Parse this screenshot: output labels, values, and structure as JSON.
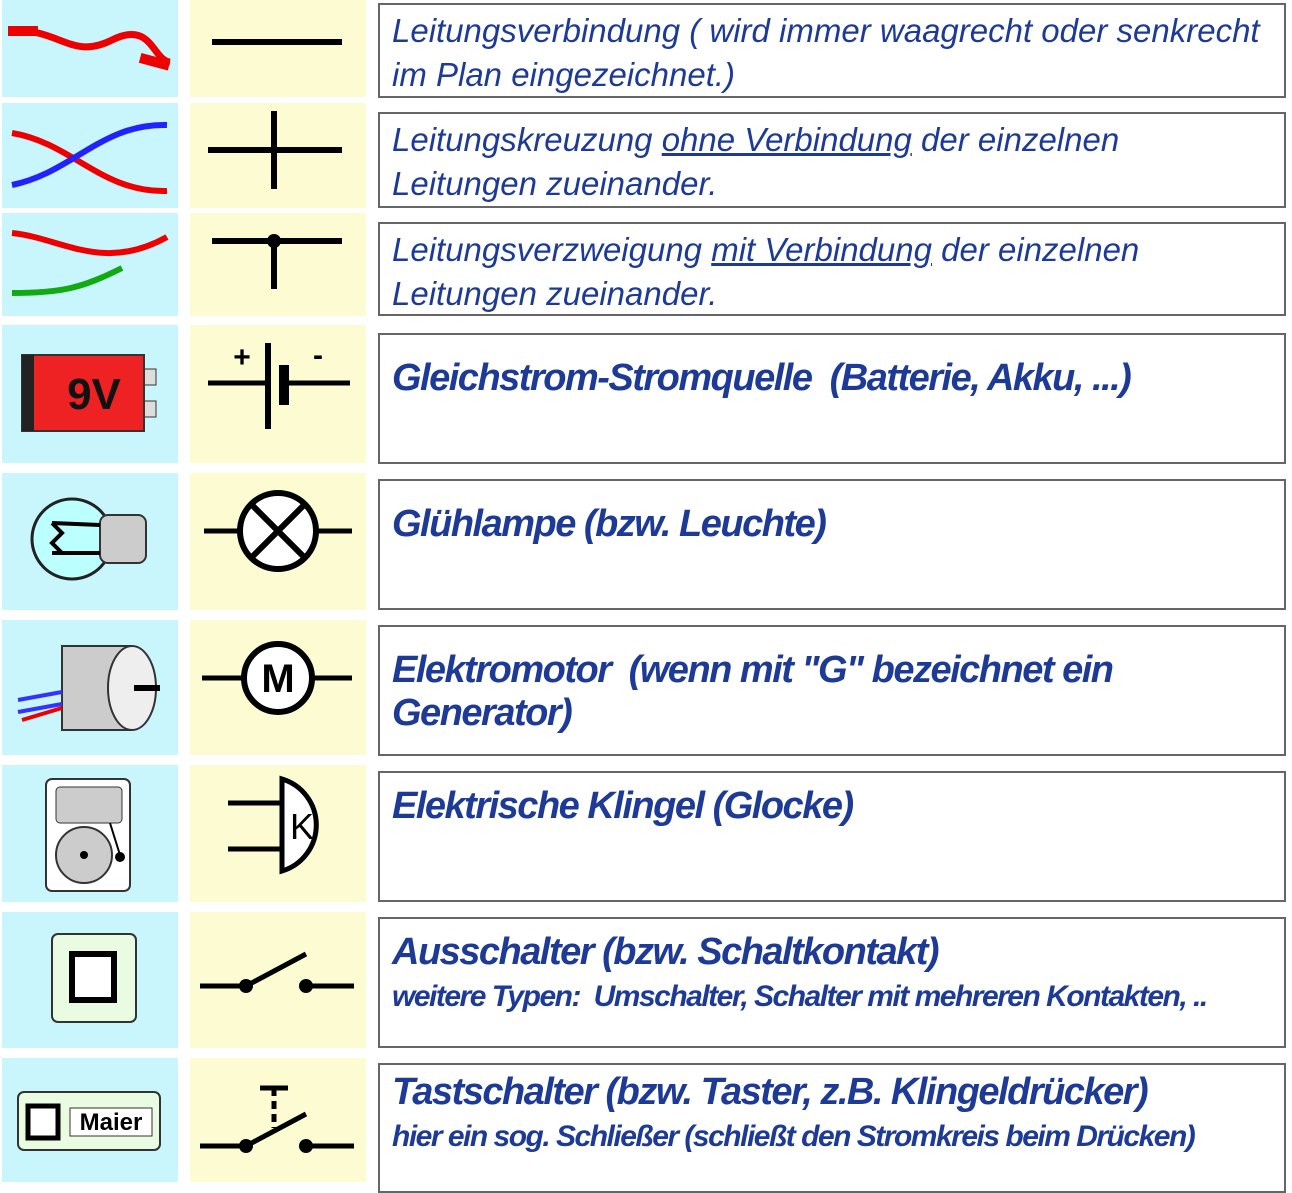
{
  "rows": [
    {
      "text": "Leitungsverbindung ( wird immer waagrecht oder senkrecht im Plan eingezeichnet.)"
    },
    {
      "text_before": "Leitungskreuzung",
      "text_underlined": "ohne Verbindung",
      "text_after": "der einzelnen Leitungen zueinander."
    },
    {
      "text_before": "Leitungsverzweigung",
      "text_underlined": "mit Verbindung",
      "text_after": "der einzelnen Leitungen zueinander."
    },
    {
      "text": "Gleichstrom-Stromquelle  (Batterie, Akku, ...)",
      "icon_label": "9V",
      "symbol_plus": "+",
      "symbol_minus": "-"
    },
    {
      "text": "Glühlampe (bzw. Leuchte)"
    },
    {
      "text": "Elektromotor  (wenn mit \"G\" bezeichnet ein Generator)",
      "symbol_label": "M"
    },
    {
      "text": "Elektrische Klingel (Glocke)",
      "symbol_label": "K"
    },
    {
      "text": "Ausschalter (bzw. Schaltkontakt)",
      "subtext": "weitere Typen:  Umschalter, Schalter mit mehreren Kontakten, .."
    },
    {
      "text": "Tastschalter (bzw. Taster, z.B. Klingeldrücker)",
      "subtext": "hier ein sog. Schließer (schließt den Stromkreis beim Drücken)",
      "icon_label": "Maier"
    }
  ]
}
